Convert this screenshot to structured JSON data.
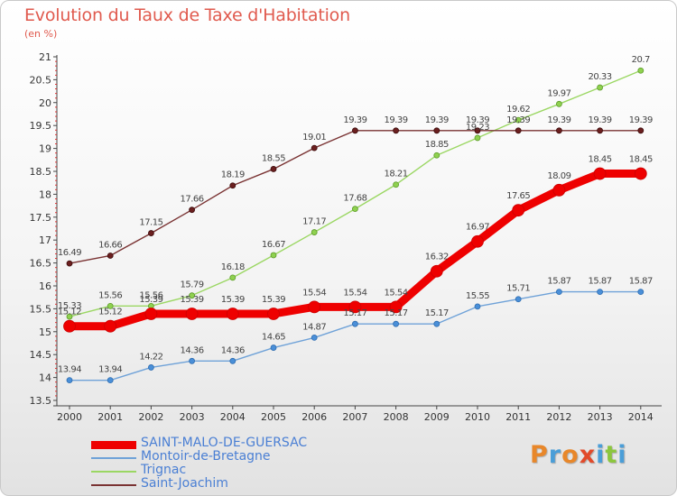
{
  "title": "Evolution du Taux de Taxe d'Habitation",
  "unit_label": "(en %)",
  "logo": {
    "text": "Proxiti",
    "colors": [
      "#e8872a",
      "#4a9ed8",
      "#e8872a",
      "#e24a2a",
      "#4a9ed8",
      "#8cc63e",
      "#4a9ed8"
    ]
  },
  "chart_data": {
    "type": "line",
    "title": "Evolution du Taux de Taxe d'Habitation",
    "ylabel": "(en %)",
    "xlabel": "",
    "x": [
      "2000",
      "2001",
      "2002",
      "2003",
      "2004",
      "2005",
      "2006",
      "2007",
      "2008",
      "2009",
      "2010",
      "2011",
      "2012",
      "2013",
      "2014"
    ],
    "yticks": [
      "13.5",
      "14",
      "14.5",
      "15",
      "15.5",
      "16",
      "16.5",
      "17",
      "17.5",
      "18",
      "18.5",
      "19",
      "19.5",
      "20",
      "20.5",
      "21"
    ],
    "ylim": [
      13.5,
      21
    ],
    "grid": false,
    "legend_position": "bottom-left",
    "series": [
      {
        "name": "SAINT-MALO-DE-GUERSAC",
        "color": "#ee0000",
        "values": [
          15.12,
          15.12,
          15.39,
          15.39,
          15.39,
          15.39,
          15.54,
          15.54,
          15.54,
          16.32,
          16.97,
          17.65,
          18.09,
          18.45,
          18.45
        ],
        "labels": [
          "15.12",
          "15.12",
          "15.39",
          "15.39",
          "15.39",
          "15.39",
          "15.54",
          "15.54",
          "15.54",
          "16.32",
          "16.97",
          "17.65",
          "18.09",
          "18.45",
          "18.45"
        ]
      },
      {
        "name": "Montoir-de-Bretagne",
        "color": "#5b9bd5",
        "values": [
          13.94,
          13.94,
          14.22,
          14.36,
          14.36,
          14.65,
          14.87,
          15.17,
          15.17,
          15.17,
          15.55,
          15.71,
          15.87,
          15.87,
          15.87
        ],
        "labels": [
          "13.94",
          "13.94",
          "14.22",
          "14.36",
          "14.36",
          "14.65",
          "14.87",
          "15.17",
          "15.17",
          "15.17",
          "15.55",
          "15.71",
          "15.87",
          "15.87",
          "15.87"
        ]
      },
      {
        "name": "Trignac",
        "color": "#8fd14f",
        "values": [
          15.33,
          15.56,
          15.56,
          15.79,
          16.18,
          16.67,
          17.17,
          17.68,
          18.21,
          18.85,
          19.23,
          19.62,
          19.97,
          20.33,
          20.7
        ],
        "labels": [
          "15.33",
          "15.56",
          "15.56",
          "15.79",
          "16.18",
          "16.67",
          "17.17",
          "17.68",
          "18.21",
          "18.85",
          "19.23",
          "19.62",
          "19.97",
          "20.33",
          "20.7"
        ]
      },
      {
        "name": "Saint-Joachim",
        "color": "#6b1f1f",
        "values": [
          16.49,
          16.66,
          17.15,
          17.66,
          18.19,
          18.55,
          19.01,
          19.39,
          19.39,
          19.39,
          19.39,
          19.39,
          19.39,
          19.39,
          19.39
        ],
        "labels": [
          "16.49",
          "16.66",
          "17.15",
          "17.66",
          "18.19",
          "18.55",
          "19.01",
          "19.39",
          "19.39",
          "19.39",
          "19.39",
          "19.39",
          "19.39",
          "19.39",
          "19.39"
        ]
      }
    ]
  }
}
